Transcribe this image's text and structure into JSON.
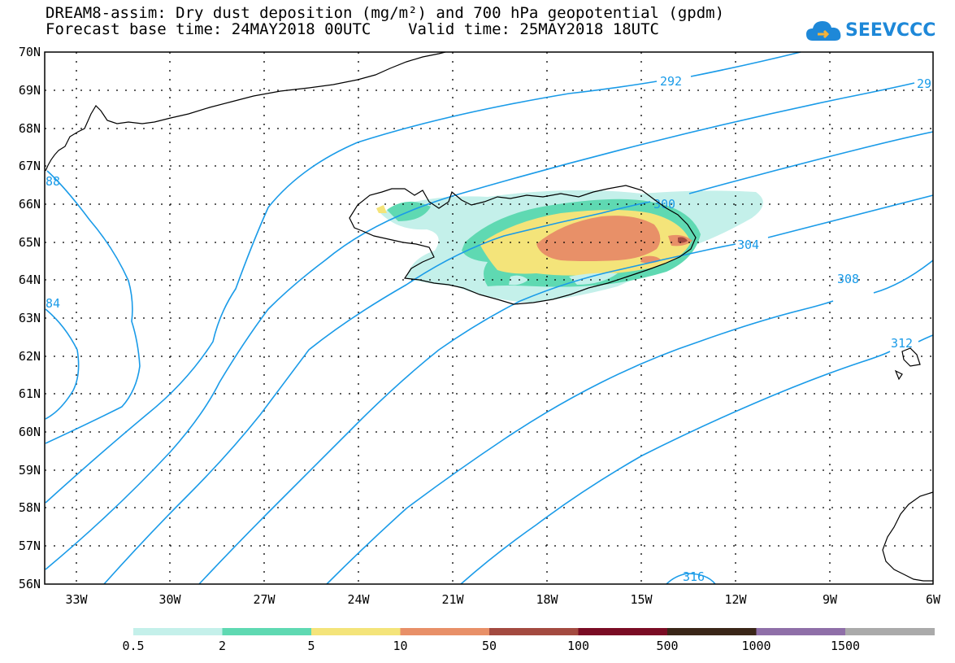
{
  "header": {
    "title_line1": "DREAM8-assim: Dry dust deposition (mg/m²) and 700 hPa geopotential (gpdm)",
    "title_line2": "Forecast base time: 24MAY2018 00UTC    Valid time: 25MAY2018 18UTC"
  },
  "logo": {
    "text": "SEEVCCC",
    "icon": "cloud-icon",
    "color": "#1e88d8"
  },
  "map": {
    "lat_labels": [
      "70N",
      "69N",
      "68N",
      "67N",
      "66N",
      "65N",
      "64N",
      "63N",
      "62N",
      "61N",
      "60N",
      "59N",
      "58N",
      "57N",
      "56N"
    ],
    "lon_labels": [
      "33W",
      "30W",
      "27W",
      "24W",
      "21W",
      "18W",
      "15W",
      "12W",
      "9W",
      "6W"
    ],
    "contour_color": "#1a9be8",
    "contour_labels": [
      "292",
      "29",
      "300",
      "304",
      "308",
      "312",
      "316",
      "88",
      "84"
    ]
  },
  "colorbar": {
    "colors": [
      "#c4f0ea",
      "#5fd9b2",
      "#f4e47a",
      "#e89068",
      "#a34a40",
      "#7a0c24",
      "#3a2618",
      "#8f6fa8",
      "#aaaaaa"
    ],
    "labels": [
      "0.5",
      "2",
      "5",
      "10",
      "50",
      "100",
      "500",
      "1000",
      "1500"
    ]
  }
}
